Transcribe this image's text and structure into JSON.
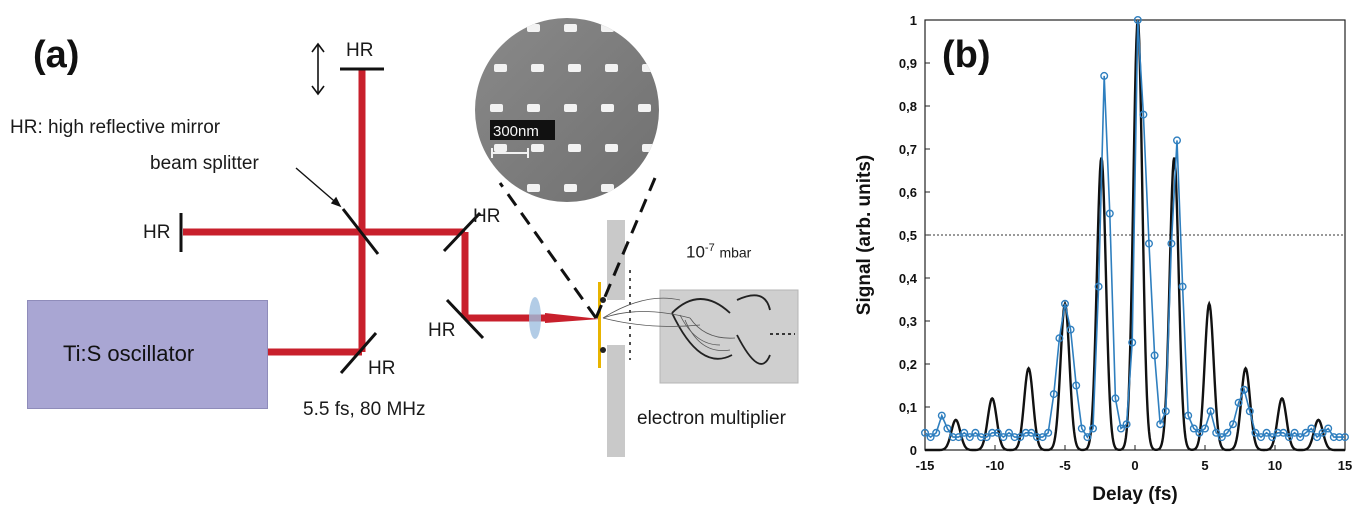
{
  "panels": {
    "a": "(a)",
    "b": "(b)"
  },
  "setup": {
    "legend_hr": "HR: high reflective mirror",
    "beam_splitter": "beam splitter",
    "hr_label": "HR",
    "oscillator": "Ti:S oscillator",
    "pulse": "5.5 fs, 80 MHz",
    "scale_bar": "300nm",
    "pressure_base": "10",
    "pressure_exp": "-7",
    "pressure_unit": "mbar",
    "detector": "electron multiplier"
  },
  "colors": {
    "beam": "#c8202c",
    "oscillator": "#a9a6d3",
    "measured": "#2f7fbf",
    "simulated": "#111111"
  },
  "chart_data": {
    "type": "line",
    "xlabel": "Delay (fs)",
    "ylabel": "Signal (arb. units)",
    "xlim": [
      -15,
      15
    ],
    "ylim": [
      0,
      1
    ],
    "x_ticks": [
      "-15",
      "-10",
      "-5",
      "0",
      "5",
      "10",
      "15"
    ],
    "y_ticks": [
      "0",
      "0,1",
      "0,2",
      "0,3",
      "0,4",
      "0,5",
      "0,6",
      "0,7",
      "0,8",
      "0,9",
      "1"
    ],
    "reference_line": {
      "y": 0.5,
      "style": "dotted"
    },
    "series": [
      {
        "style": "solid black line",
        "peaks": [
          {
            "x": -12.8,
            "y": 0.07
          },
          {
            "x": -10.2,
            "y": 0.12
          },
          {
            "x": -7.6,
            "y": 0.19
          },
          {
            "x": -5.0,
            "y": 0.34
          },
          {
            "x": -2.4,
            "y": 0.68
          },
          {
            "x": 0.2,
            "y": 1.0
          },
          {
            "x": 2.8,
            "y": 0.68
          },
          {
            "x": 5.3,
            "y": 0.34
          },
          {
            "x": 7.9,
            "y": 0.19
          },
          {
            "x": 10.5,
            "y": 0.12
          },
          {
            "x": 13.1,
            "y": 0.07
          }
        ],
        "baseline": 0.0
      },
      {
        "style": "blue line with circle markers",
        "points": [
          [
            -15.0,
            0.04
          ],
          [
            -14.6,
            0.03
          ],
          [
            -14.2,
            0.04
          ],
          [
            -13.8,
            0.08
          ],
          [
            -13.4,
            0.05
          ],
          [
            -13.0,
            0.03
          ],
          [
            -12.6,
            0.03
          ],
          [
            -12.2,
            0.04
          ],
          [
            -11.8,
            0.03
          ],
          [
            -11.4,
            0.04
          ],
          [
            -11.0,
            0.03
          ],
          [
            -10.6,
            0.03
          ],
          [
            -10.2,
            0.04
          ],
          [
            -9.8,
            0.04
          ],
          [
            -9.4,
            0.03
          ],
          [
            -9.0,
            0.04
          ],
          [
            -8.6,
            0.03
          ],
          [
            -8.2,
            0.03
          ],
          [
            -7.8,
            0.04
          ],
          [
            -7.4,
            0.04
          ],
          [
            -7.0,
            0.03
          ],
          [
            -6.6,
            0.03
          ],
          [
            -6.2,
            0.04
          ],
          [
            -5.8,
            0.13
          ],
          [
            -5.4,
            0.26
          ],
          [
            -5.0,
            0.34
          ],
          [
            -4.6,
            0.28
          ],
          [
            -4.2,
            0.15
          ],
          [
            -3.8,
            0.05
          ],
          [
            -3.4,
            0.03
          ],
          [
            -3.0,
            0.05
          ],
          [
            -2.6,
            0.38
          ],
          [
            -2.2,
            0.87
          ],
          [
            -1.8,
            0.55
          ],
          [
            -1.4,
            0.12
          ],
          [
            -1.0,
            0.05
          ],
          [
            -0.6,
            0.06
          ],
          [
            -0.2,
            0.25
          ],
          [
            0.2,
            1.0
          ],
          [
            0.6,
            0.78
          ],
          [
            1.0,
            0.48
          ],
          [
            1.4,
            0.22
          ],
          [
            1.8,
            0.06
          ],
          [
            2.2,
            0.09
          ],
          [
            2.6,
            0.48
          ],
          [
            3.0,
            0.72
          ],
          [
            3.4,
            0.38
          ],
          [
            3.8,
            0.08
          ],
          [
            4.2,
            0.05
          ],
          [
            4.6,
            0.04
          ],
          [
            5.0,
            0.05
          ],
          [
            5.4,
            0.09
          ],
          [
            5.8,
            0.04
          ],
          [
            6.2,
            0.03
          ],
          [
            6.6,
            0.04
          ],
          [
            7.0,
            0.06
          ],
          [
            7.4,
            0.11
          ],
          [
            7.8,
            0.14
          ],
          [
            8.2,
            0.09
          ],
          [
            8.6,
            0.04
          ],
          [
            9.0,
            0.03
          ],
          [
            9.4,
            0.04
          ],
          [
            9.8,
            0.03
          ],
          [
            10.2,
            0.04
          ],
          [
            10.6,
            0.04
          ],
          [
            11.0,
            0.03
          ],
          [
            11.4,
            0.04
          ],
          [
            11.8,
            0.03
          ],
          [
            12.2,
            0.04
          ],
          [
            12.6,
            0.05
          ],
          [
            13.0,
            0.03
          ],
          [
            13.4,
            0.04
          ],
          [
            13.8,
            0.05
          ],
          [
            14.2,
            0.03
          ],
          [
            14.6,
            0.03
          ],
          [
            15.0,
            0.03
          ]
        ]
      }
    ]
  }
}
